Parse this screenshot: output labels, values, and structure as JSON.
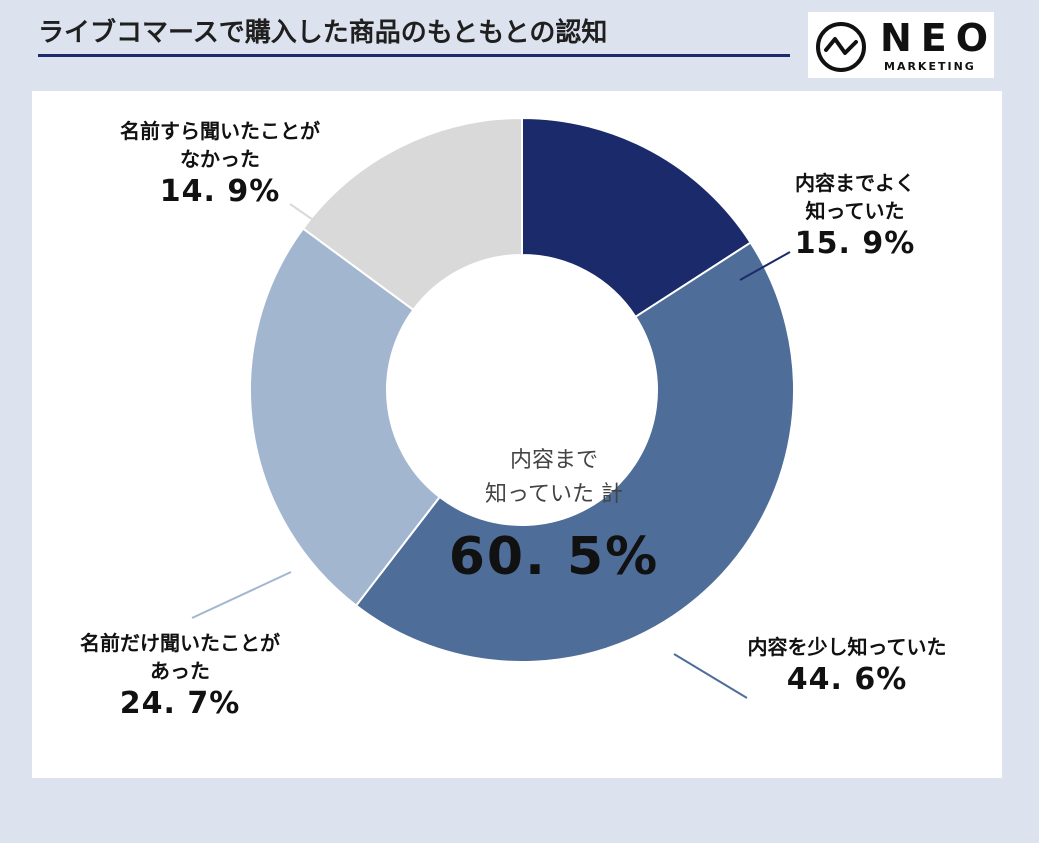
{
  "header": {
    "title": "ライブコマースで購入した商品のもともとの認知",
    "logo_word": "NEO",
    "logo_sub": "MARKETING"
  },
  "center": {
    "text": "内容まで\n知っていた 計",
    "value": "60. 5%"
  },
  "colors": {
    "background": "#dde3ee",
    "accent": "#1e2a6e"
  },
  "chart_data": {
    "type": "pie",
    "donut": true,
    "title": "ライブコマースで購入した商品のもともとの認知",
    "unit": "%",
    "slices": [
      {
        "label": "内容までよく\n知っていた",
        "value": 15.9,
        "display": "15. 9%",
        "color": "#1b2a6b"
      },
      {
        "label": "内容を少し知っていた",
        "value": 44.6,
        "display": "44. 6%",
        "color": "#4e6d98"
      },
      {
        "label": "名前だけ聞いたことが\nあった",
        "value": 24.7,
        "display": "24. 7%",
        "color": "#a2b6d0"
      },
      {
        "label": "名前すら聞いたことが\nなかった",
        "value": 14.9,
        "display": "14. 9%",
        "color": "#d9d9d9"
      }
    ],
    "center_label": "内容まで知っていた 計",
    "center_value": 60.5
  }
}
